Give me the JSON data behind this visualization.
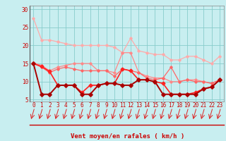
{
  "bg_color": "#c8eef0",
  "grid_color": "#88cccc",
  "xlabel": "Vent moyen/en rafales ( km/h )",
  "x": [
    0,
    1,
    2,
    3,
    4,
    5,
    6,
    7,
    8,
    9,
    10,
    11,
    12,
    13,
    14,
    15,
    16,
    17,
    18,
    19,
    20,
    21,
    22,
    23
  ],
  "ylim": [
    4.5,
    31
  ],
  "xlim": [
    -0.5,
    23.5
  ],
  "yticks": [
    5,
    10,
    15,
    20,
    25,
    30
  ],
  "lines": [
    {
      "y": [
        27.5,
        21.5,
        21.5,
        21.0,
        20.5,
        20.0,
        20.0,
        20.0,
        20.0,
        20.0,
        19.5,
        18.0,
        22.0,
        18.5,
        18.0,
        17.5,
        17.5,
        16.0,
        16.0,
        17.0,
        17.0,
        16.0,
        15.0,
        17.0
      ],
      "color": "#ffaaaa",
      "lw": 0.9,
      "marker": "D",
      "ms": 1.8
    },
    {
      "y": [
        15.2,
        14.5,
        13.0,
        14.0,
        14.5,
        15.0,
        15.0,
        15.0,
        13.0,
        13.0,
        12.5,
        18.0,
        18.0,
        12.5,
        11.5,
        11.0,
        11.0,
        10.0,
        10.0,
        10.5,
        10.5,
        10.0,
        9.5,
        10.5
      ],
      "color": "#ff8888",
      "lw": 0.9,
      "marker": "D",
      "ms": 1.8
    },
    {
      "y": [
        15.0,
        14.0,
        12.5,
        13.5,
        14.0,
        13.5,
        13.0,
        13.0,
        13.0,
        13.0,
        11.5,
        13.5,
        13.0,
        12.5,
        11.0,
        10.5,
        11.0,
        14.0,
        10.0,
        10.5,
        10.0,
        10.0,
        9.5,
        10.5
      ],
      "color": "#ff6666",
      "lw": 0.9,
      "marker": "D",
      "ms": 1.8
    },
    {
      "y": [
        15.0,
        14.2,
        12.8,
        9.0,
        9.0,
        9.0,
        7.0,
        9.0,
        9.0,
        9.5,
        9.5,
        13.5,
        13.0,
        10.5,
        10.5,
        10.0,
        9.5,
        6.5,
        6.5,
        6.5,
        7.0,
        8.0,
        8.5,
        10.5
      ],
      "color": "#ff2222",
      "lw": 1.2,
      "marker": "D",
      "ms": 2.5
    },
    {
      "y": [
        15.0,
        6.5,
        6.5,
        9.0,
        9.0,
        9.0,
        6.5,
        6.5,
        9.0,
        9.5,
        9.5,
        9.0,
        9.0,
        10.5,
        10.5,
        10.0,
        6.5,
        6.5,
        6.5,
        6.5,
        6.5,
        8.0,
        8.5,
        10.5
      ],
      "color": "#aa0000",
      "lw": 1.4,
      "marker": "D",
      "ms": 2.8
    }
  ],
  "arrow_color": "#dd2222",
  "xlabel_color": "#cc0000",
  "xlabel_fontsize": 6.5,
  "tick_color": "#cc0000",
  "tick_fontsize": 5.5,
  "red_line_color": "#cc0000"
}
